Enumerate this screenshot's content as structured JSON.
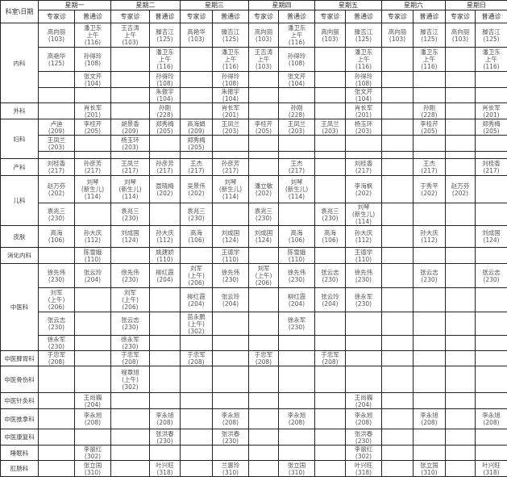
{
  "header": {
    "corner": "科室\\日期",
    "days": [
      "星期一",
      "星期二",
      "星期三",
      "星期四",
      "星期五",
      "星期六",
      "星期日"
    ],
    "expert_label": "专家诊",
    "general_label": "普通诊"
  },
  "departments": [
    {
      "name": "内科",
      "rows": [
        [
          "高向丽\n(103)",
          "潘卫东\n上午\n(116)",
          "王吉涛\n上午\n(103)",
          "滕吉江\n(125)",
          "高艳华\n(103)",
          "滕吉江\n(125)",
          "高向丽\n(103)",
          "潘卫东\n上午\n(116)",
          "高向丽\n(103)",
          "滕吉江\n(125)",
          "高向丽\n(103)",
          "滕吉江\n(125)",
          "高向丽\n(103)",
          "滕吉江\n(125)"
        ],
        [
          "高艳华\n(125)",
          "孙得玲\n(108)",
          "",
          "潘卫东\n上午\n(116)",
          "",
          "潘卫东\n上午\n(116)",
          "王吉涛\n上午\n(103)",
          "孙得玲\n(108)",
          "",
          "潘卫东\n上午\n(116)",
          "",
          "潘卫东\n上午\n(116)",
          "",
          "潘卫东\n上午\n(116)"
        ],
        [
          "",
          "张文芹\n(104)",
          "",
          "孙得玲\n(108)",
          "",
          "孙得玲\n(108)",
          "",
          "张文芹\n(104)",
          "",
          "孙得玲\n(108)",
          "",
          "",
          "",
          ""
        ],
        [
          "",
          "",
          "",
          "朱振宇\n(104)",
          "",
          "朱振宇\n(104)",
          "",
          "",
          "",
          "张文芹\n(104)",
          "",
          "",
          "",
          ""
        ]
      ]
    },
    {
      "name": "外科",
      "rows": [
        [
          "",
          "肖长军\n(201)",
          "",
          "孙刚\n(228)",
          "",
          "肖长军\n(201)",
          "",
          "孙刚\n(228)",
          "",
          "肖长军\n(201)",
          "",
          "孙刚\n(228)",
          "",
          "肖长军\n(201)"
        ]
      ]
    },
    {
      "name": "妇科",
      "rows": [
        [
          "卢迪\n(209)",
          "李桂芹\n(205)",
          "胡景香\n(209)",
          "郑秀梅\n(205)",
          "高海娟\n(209)",
          "王凤兰\n(203)",
          "李桂芹\n(205)",
          "王凤兰\n(203)",
          "王凤兰\n(203)",
          "杨玉环\n(203)",
          "",
          "李桂芹\n(205)",
          "",
          "郑秀梅\n(205)"
        ],
        [
          "王凤兰\n(203)",
          "",
          "杨玉环\n(203)",
          "",
          "郑秀梅\n(205)",
          "",
          "",
          "",
          "",
          "",
          "",
          "",
          "",
          ""
        ],
        [
          "",
          "",
          "",
          "",
          "",
          "",
          "",
          "",
          "",
          "",
          "",
          "",
          "",
          ""
        ]
      ]
    },
    {
      "name": "产科",
      "rows": [
        [
          "刘桂香\n(217)",
          "孙彦芳\n(217)",
          "王凤兰\n(217)",
          "孙彦芳\n(217)",
          "王杰\n(217)",
          "孙彦芳\n(217)",
          "",
          "王杰\n(217)",
          "",
          "刘桂香\n(217)",
          "",
          "王杰\n(217)",
          "",
          "刘桂香\n(217)"
        ]
      ]
    },
    {
      "name": "儿科",
      "rows": [
        [
          "赵万芬\n(202)",
          "刘琴\n(新生儿)\n(114)",
          "刘琴\n(新生儿)\n(114)",
          "聂晓梅\n(202)",
          "吴景伟\n(202)",
          "刘琴\n(新生儿)\n(114)",
          "潘立敏\n(202)",
          "刘琴\n(新生儿)\n(114)",
          "",
          "李海枫\n(202)",
          "",
          "于秀平\n(202)",
          "赵万芬\n(202)",
          ""
        ],
        [
          "袁兆三\n(230)",
          "",
          "袁兆三\n(230)",
          "",
          "袁兆三\n(230)",
          "",
          "袁兆三\n(230)",
          "",
          "袁兆三\n(230)",
          "刘琴\n(新生儿)\n(114)",
          "",
          "",
          "",
          ""
        ]
      ]
    },
    {
      "name": "皮肤",
      "rows": [
        [
          "高海\n(106)",
          "孙大庆\n(112)",
          "刘成国\n(124)",
          "孙大庆\n(112)",
          "高海\n(106)",
          "刘成国\n(124)",
          "刘成国\n(124)",
          "高海\n(106)",
          "高海\n(106)",
          "孙大庆\n(112)",
          "",
          "孙大庆\n(112)",
          "",
          "刘成国\n(124)"
        ]
      ]
    },
    {
      "name": "消化内科",
      "rows": [
        [
          "",
          "陈雪娥\n(110)",
          "",
          "姚建娇\n(110)",
          "",
          "王德学\n(110)",
          "",
          "陈雪娥\n(110)",
          "",
          "王德学\n(110)",
          "",
          "",
          "",
          ""
        ]
      ]
    },
    {
      "name": "中医科",
      "rows": [
        [
          "徐先伟\n(230)",
          "张云玲\n(204)",
          "徐先伟\n(230)",
          "柳红霞\n(204)",
          "刘军\n(上午)\n(206)",
          "徐先伟\n(230)",
          "刘军\n(上午)\n(206)",
          "徐先伟\n(230)",
          "张云志\n(230)",
          "徐先伟\n(230)",
          "",
          "张云志\n(230)",
          "",
          "张云志\n(230)"
        ],
        [
          "刘军\n(上午)\n(206)",
          "",
          "刘军\n(上午)\n(206)",
          "",
          "柳红霞\n(204)",
          "张云玲\n(204)",
          "",
          "柳红霞\n(204)",
          "张云玲\n(204)",
          "徐永军\n(230)",
          "",
          "",
          "",
          ""
        ],
        [
          "张云志\n(230)",
          "",
          "张云志\n(230)",
          "",
          "苗永鹏\n(上午)\n(302)",
          "",
          "",
          "徐永军\n(230)",
          "",
          "",
          "",
          "",
          "",
          ""
        ],
        [
          "徐永军\n(230)",
          "",
          "徐永军\n(230)",
          "",
          "",
          "",
          "",
          "",
          "",
          "",
          "",
          "",
          "",
          ""
        ]
      ]
    },
    {
      "name": "中医脾胃科",
      "rows": [
        [
          "于忠军\n(208)",
          "",
          "于忠军\n(208)",
          "",
          "于忠军\n(208)",
          "",
          "于忠军\n(208)",
          "",
          "于忠军\n(208)",
          "",
          "",
          "",
          "",
          ""
        ]
      ]
    },
    {
      "name": "中医骨伤科",
      "rows": [
        [
          "",
          "",
          "程章旭\n(上午)\n(302)",
          "",
          "",
          "",
          "",
          "",
          "",
          "",
          "",
          "",
          "",
          ""
        ]
      ]
    },
    {
      "name": "中医针灸科",
      "rows": [
        [
          "",
          "王尚巍\n(204)",
          "",
          "",
          "",
          "",
          "",
          "",
          "",
          "王尚巍\n(204)",
          "",
          "",
          "",
          ""
        ]
      ]
    },
    {
      "name": "中医推拿科",
      "rows": [
        [
          "",
          "李永旭\n(208)",
          "",
          "李永旭\n(208)",
          "",
          "李永旭\n(208)",
          "",
          "李永旭\n(208)",
          "",
          "李永旭\n(208)",
          "",
          "李永旭\n(208)",
          "",
          "李永旭\n(208)"
        ]
      ]
    },
    {
      "name": "中医康复科",
      "rows": [
        [
          "",
          "",
          "",
          "张洪春\n(230)",
          "",
          "张洪春\n(230)",
          "",
          "",
          "",
          "张洪春\n(230)",
          "",
          "",
          "",
          ""
        ]
      ]
    },
    {
      "name": "睡眠科",
      "rows": [
        [
          "",
          "李丽红\n(302)",
          "",
          "",
          "",
          "",
          "",
          "",
          "",
          "李丽红\n(302)",
          "",
          "",
          "",
          ""
        ]
      ]
    },
    {
      "name": "肛肠科",
      "rows": [
        [
          "",
          "张立国\n(310)",
          "",
          "叶兴旺\n(318)",
          "",
          "兰惠玲\n(310)",
          "",
          "张立国\n(310)",
          "",
          "叶兴旺\n(318)",
          "",
          "张立国\n(310)",
          "",
          "叶兴旺\n(318)"
        ]
      ]
    }
  ]
}
